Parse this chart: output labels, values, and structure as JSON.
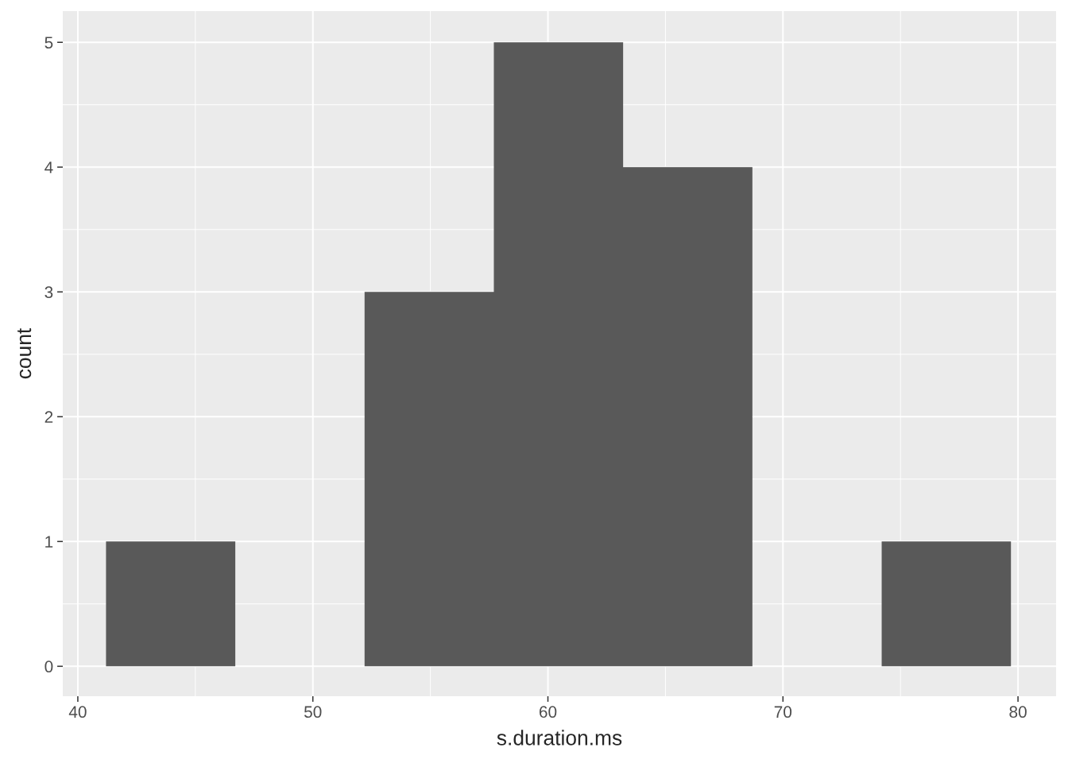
{
  "chart_data": {
    "type": "histogram",
    "xlabel": "s.duration.ms",
    "ylabel": "count",
    "bins": [
      41.2,
      46.7,
      52.2,
      57.7,
      63.2,
      68.7,
      74.2,
      79.7
    ],
    "values": [
      1,
      0,
      3,
      5,
      4,
      0,
      1
    ],
    "color": "#595959",
    "xlim": [
      39.36,
      81.62
    ],
    "xticks": [
      40,
      50,
      60,
      70,
      80
    ],
    "ylim": [
      -0.24,
      5.25
    ],
    "yticks": [
      0,
      1,
      2,
      3,
      4,
      5
    ],
    "grid": true
  }
}
